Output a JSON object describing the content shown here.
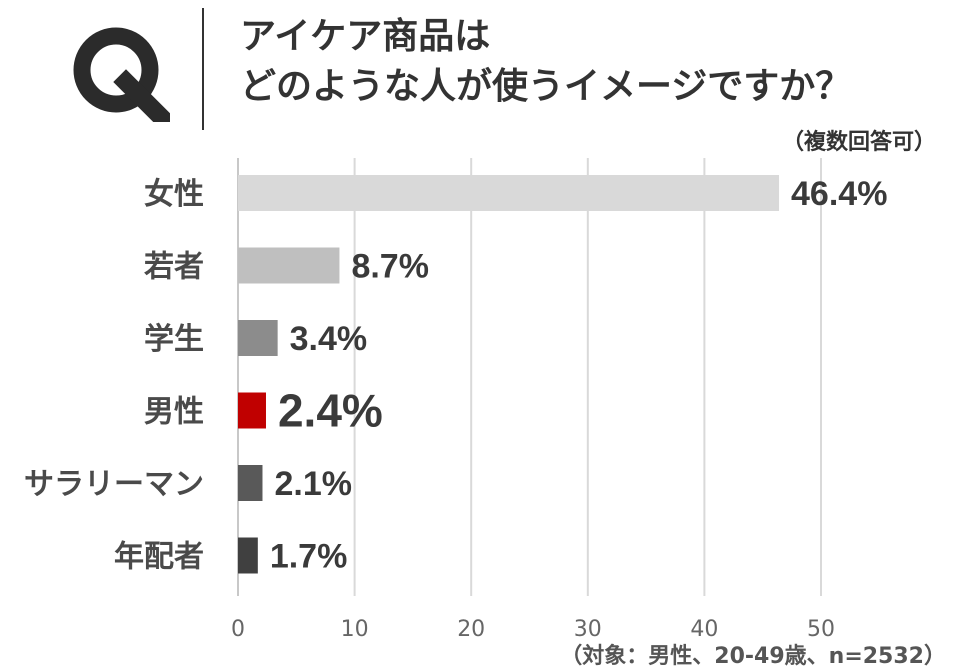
{
  "question_mark": "Q",
  "title": {
    "line1": "アイケア商品は",
    "line2": "どのような人が使うイメージですか？"
  },
  "subnote": "（複数回答可）",
  "footnote": "（対象：男性、20-49歳、n=2532）",
  "chart_data": {
    "type": "bar",
    "orientation": "horizontal",
    "categories": [
      "女性",
      "若者",
      "学生",
      "男性",
      "サラリーマン",
      "年配者"
    ],
    "values": [
      46.4,
      8.7,
      3.4,
      2.4,
      2.1,
      1.7
    ],
    "value_labels": [
      "46.4%",
      "8.7%",
      "3.4%",
      "2.4%",
      "2.1%",
      "1.7%"
    ],
    "colors": [
      "#d9d9d9",
      "#bfbfbf",
      "#8c8c8c",
      "#c00000",
      "#595959",
      "#404040"
    ],
    "highlight_index": 3,
    "xlim": [
      0,
      50
    ],
    "xticks": [
      0,
      10,
      20,
      30,
      40,
      50
    ],
    "grid": true
  }
}
